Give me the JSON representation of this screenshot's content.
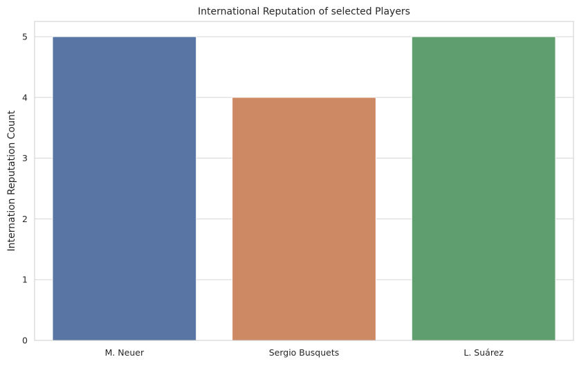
{
  "chart_data": {
    "type": "bar",
    "title": "International Reputation of selected Players",
    "xlabel": "",
    "ylabel": "Internation Reputation Count",
    "categories": [
      "M. Neuer",
      "Sergio Busquets",
      "L. Suárez"
    ],
    "values": [
      5,
      4,
      5
    ],
    "colors": [
      "#5875a4",
      "#cc8963",
      "#5f9e6e"
    ],
    "ylim": [
      0,
      5.25
    ],
    "yticks": [
      0,
      1,
      2,
      3,
      4,
      5
    ],
    "grid": "horizontal",
    "background": "#ffffff",
    "gridColor": "#d5d5d5"
  }
}
